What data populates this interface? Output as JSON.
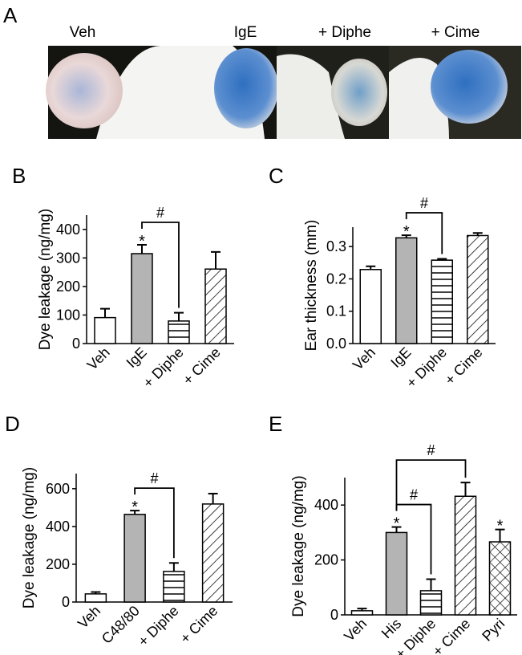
{
  "panel_a": {
    "letter": "A",
    "labels": [
      "Veh",
      "IgE",
      "+ Diphe",
      "+ Cime"
    ]
  },
  "chart_data": [
    {
      "type": "bar",
      "letter": "B",
      "ylabel": "Dye leakage (ng/mg)",
      "categories": [
        "Veh",
        "IgE",
        "+ Diphe",
        "+ Cime"
      ],
      "values": [
        91,
        315,
        79,
        261
      ],
      "errors": [
        31,
        31,
        29,
        60
      ],
      "fills": [
        "white",
        "gray",
        "horizontal",
        "diagonal"
      ],
      "markers": [
        null,
        "*",
        null,
        null
      ],
      "brackets": [
        {
          "from": "IgE",
          "to": "+ Diphe",
          "label": "#"
        }
      ],
      "ylim": [
        0,
        450
      ],
      "yticks": [
        0,
        100,
        200,
        300,
        400
      ]
    },
    {
      "type": "bar",
      "letter": "C",
      "ylabel": "Ear thickness (mm)",
      "categories": [
        "Veh",
        "IgE",
        "+ Diphe",
        "+ Cime"
      ],
      "values": [
        0.229,
        0.327,
        0.258,
        0.334
      ],
      "errors": [
        0.01,
        0.008,
        0.004,
        0.008
      ],
      "fills": [
        "white",
        "gray",
        "horizontal",
        "diagonal"
      ],
      "markers": [
        null,
        "*",
        null,
        null
      ],
      "brackets": [
        {
          "from": "IgE",
          "to": "+ Diphe",
          "label": "#"
        }
      ],
      "ylim": [
        0,
        0.36
      ],
      "yticks": [
        {
          "value": 0,
          "label": "0.0"
        },
        0.1,
        0.2,
        0.3
      ]
    },
    {
      "type": "bar",
      "letter": "D",
      "ylabel": "Dye leakage (ng/mg)",
      "categories": [
        "Veh",
        "C48/80",
        "+ Diphe",
        "+ Cime"
      ],
      "values": [
        43,
        464,
        162,
        519
      ],
      "errors": [
        10,
        20,
        45,
        55
      ],
      "fills": [
        "white",
        "gray",
        "horizontal",
        "diagonal"
      ],
      "markers": [
        null,
        "*",
        null,
        null
      ],
      "brackets": [
        {
          "from": "C48/80",
          "to": "+ Diphe",
          "label": "#"
        }
      ],
      "ylim": [
        0,
        680
      ],
      "yticks": [
        0,
        200,
        400,
        600
      ]
    },
    {
      "type": "bar",
      "letter": "E",
      "ylabel": "Dye leakage (ng/mg)",
      "categories": [
        "Veh",
        "His",
        "+ Diphe",
        "+ Cime",
        "Pyri"
      ],
      "values": [
        15,
        300,
        88,
        432,
        266
      ],
      "errors": [
        8,
        20,
        42,
        50,
        45
      ],
      "fills": [
        "white",
        "gray",
        "horizontal",
        "diagonal",
        "crosshatch"
      ],
      "markers": [
        null,
        "*",
        null,
        null,
        "*"
      ],
      "brackets": [
        {
          "from": "His",
          "to": "+ Diphe",
          "label": "#"
        },
        {
          "from": "His",
          "to": "+ Cime",
          "label": "#"
        }
      ],
      "ylim": [
        0,
        500
      ],
      "yticks": [
        0,
        200,
        400
      ]
    }
  ]
}
